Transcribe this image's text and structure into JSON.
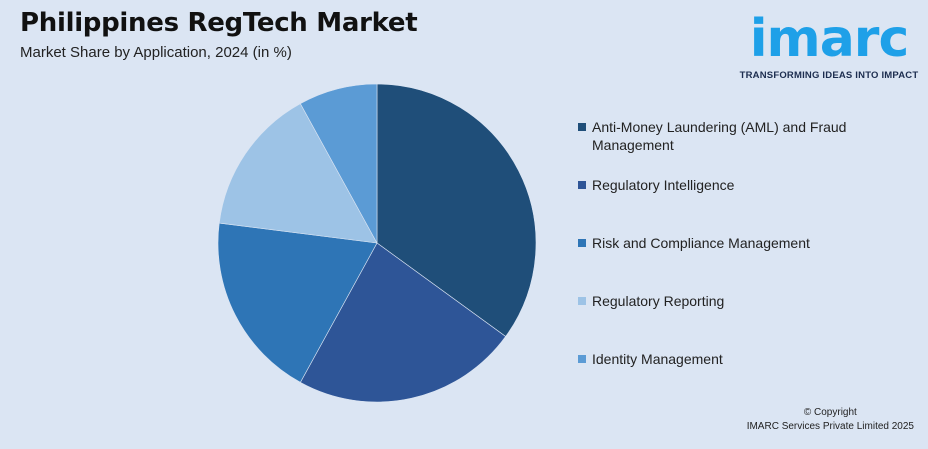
{
  "header": {
    "title": "Philippines RegTech Market",
    "subtitle": "Market Share by Application, 2024 (in %)"
  },
  "logo": {
    "wordmark": "imarc",
    "tagline": "TRANSFORMING IDEAS INTO IMPACT",
    "color": "#1ea0e8"
  },
  "chart_data": {
    "type": "pie",
    "title": "Market Share by Application, 2024 (in %)",
    "legend_position": "right",
    "slices": [
      {
        "label": "Anti-Money Laundering (AML) and Fraud Management",
        "value": 35,
        "color": "#1f4e79"
      },
      {
        "label": "Regulatory Intelligence",
        "value": 23,
        "color": "#2e5597"
      },
      {
        "label": "Risk and Compliance Management",
        "value": 19,
        "color": "#2e75b6"
      },
      {
        "label": "Regulatory Reporting",
        "value": 15,
        "color": "#9dc3e6"
      },
      {
        "label": "Identity Management",
        "value": 8,
        "color": "#5b9bd5"
      }
    ]
  },
  "footer": {
    "copyright_line1": "© Copyright",
    "copyright_line2": "IMARC Services Private Limited 2025"
  }
}
